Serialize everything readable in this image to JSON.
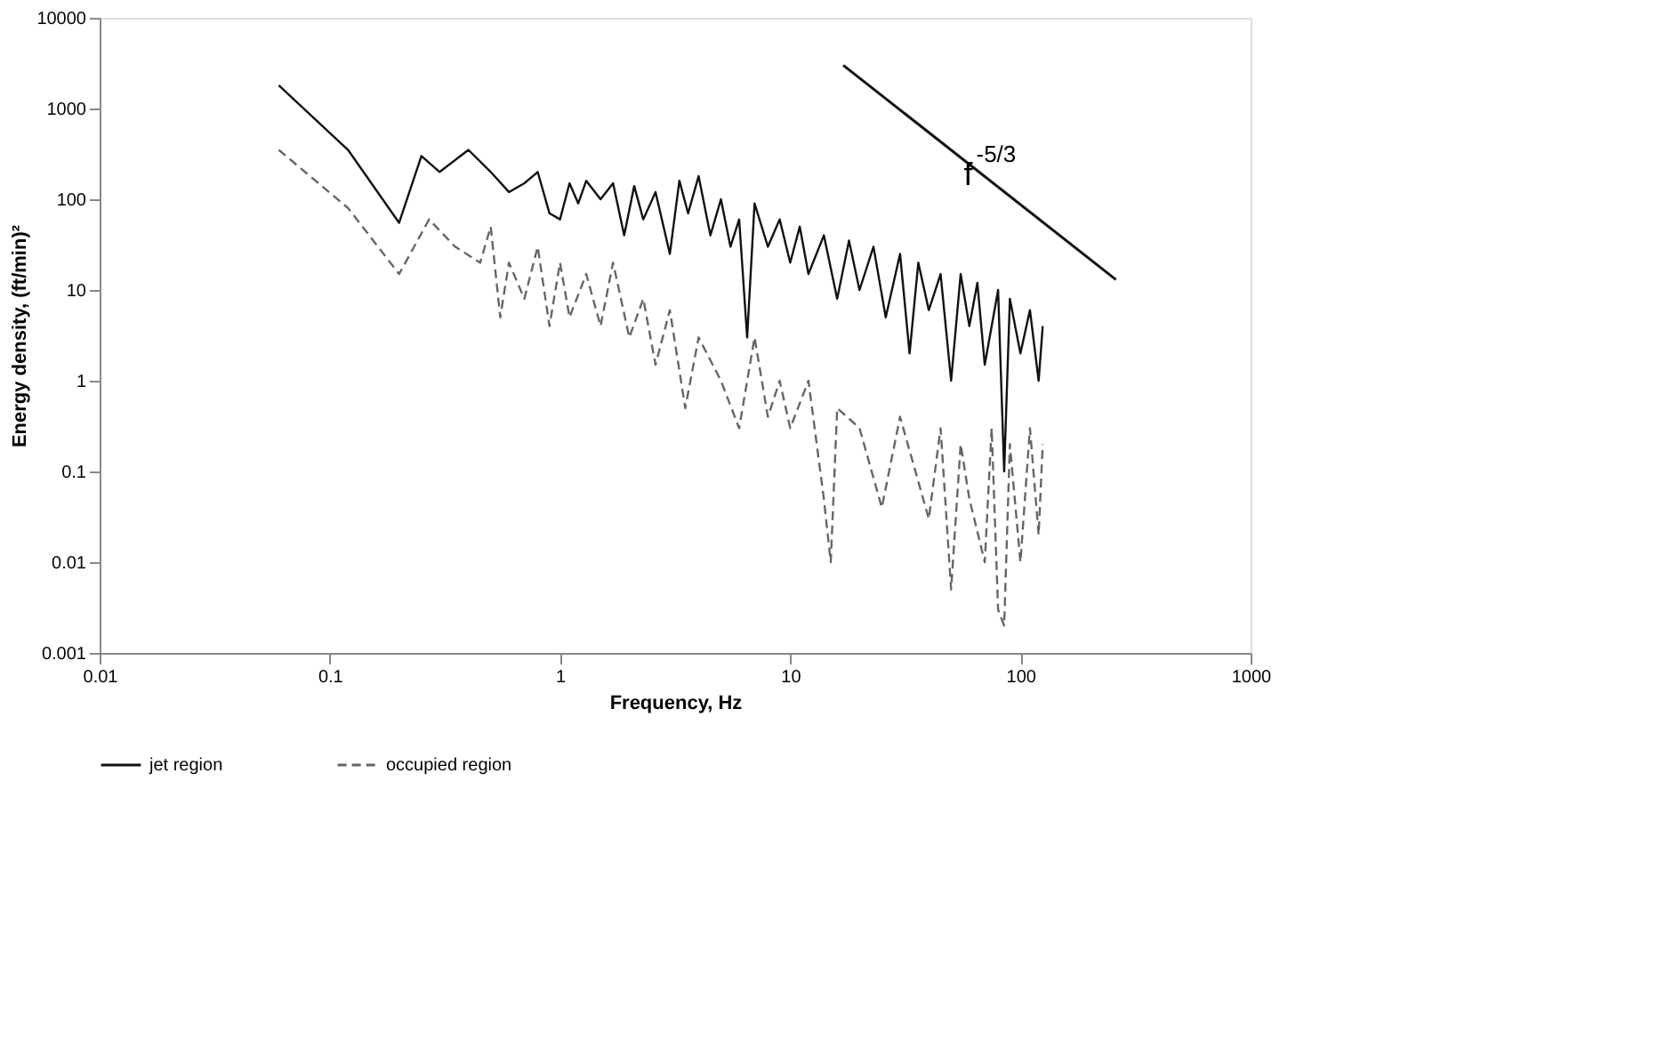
{
  "chart_data": {
    "type": "line",
    "xlabel": "Frequency, Hz",
    "ylabel": "Energy density, (ft/min)²",
    "log": "xy",
    "grid": false,
    "legend": "bottom",
    "marker": "none",
    "xlim": [
      0.01,
      1000
    ],
    "xticks": [
      0.01,
      0.1,
      1,
      10,
      100,
      1000
    ],
    "ylim": [
      0.001,
      10000
    ],
    "yticks": [
      0.001,
      0.01,
      0.1,
      1,
      10,
      100,
      1000,
      10000
    ],
    "series": [
      {
        "name": "jet region",
        "color": "#111111",
        "line_style": "solid",
        "x": [
          0.06,
          0.12,
          0.2,
          0.25,
          0.3,
          0.4,
          0.5,
          0.6,
          0.7,
          0.8,
          0.9,
          1.0,
          1.1,
          1.2,
          1.3,
          1.5,
          1.7,
          1.9,
          2.1,
          2.3,
          2.6,
          3.0,
          3.3,
          3.6,
          4.0,
          4.5,
          5.0,
          5.5,
          6.0,
          6.5,
          7,
          8,
          9,
          10,
          11,
          12,
          14,
          16,
          18,
          20,
          23,
          26,
          30,
          33,
          36,
          40,
          45,
          50,
          55,
          60,
          65,
          70,
          80,
          85,
          90,
          100,
          110,
          120,
          125
        ],
        "values": [
          1800,
          350,
          55,
          300,
          200,
          350,
          200,
          120,
          150,
          200,
          70,
          60,
          150,
          90,
          160,
          100,
          150,
          40,
          140,
          60,
          120,
          25,
          160,
          70,
          180,
          40,
          100,
          30,
          60,
          3,
          90,
          30,
          60,
          20,
          50,
          15,
          40,
          8,
          35,
          10,
          30,
          5,
          25,
          2,
          20,
          6,
          15,
          1,
          15,
          4,
          12,
          1.5,
          10,
          0.1,
          8,
          2,
          6,
          1,
          4
        ]
      },
      {
        "name": "occupied region",
        "color": "#666666",
        "line_style": "dashed",
        "x": [
          0.06,
          0.12,
          0.2,
          0.27,
          0.35,
          0.45,
          0.5,
          0.55,
          0.6,
          0.7,
          0.8,
          0.9,
          1.0,
          1.1,
          1.3,
          1.5,
          1.7,
          2,
          2.3,
          2.6,
          3,
          3.5,
          4,
          5,
          6,
          7,
          8,
          9,
          10,
          12,
          14,
          15,
          16,
          20,
          25,
          30,
          35,
          40,
          45,
          50,
          55,
          60,
          70,
          75,
          80,
          85,
          90,
          100,
          110,
          120,
          125
        ],
        "values": [
          350,
          80,
          15,
          60,
          30,
          20,
          50,
          5,
          20,
          8,
          30,
          4,
          20,
          5,
          15,
          4,
          20,
          3,
          8,
          1.5,
          6,
          0.5,
          3,
          1,
          0.3,
          3,
          0.4,
          1,
          0.3,
          1,
          0.05,
          0.01,
          0.5,
          0.3,
          0.04,
          0.4,
          0.1,
          0.03,
          0.3,
          0.005,
          0.2,
          0.05,
          0.01,
          0.3,
          0.003,
          0.002,
          0.2,
          0.01,
          0.3,
          0.02,
          0.2
        ]
      },
      {
        "type": "line",
        "color": "#111111",
        "line_style": "solid",
        "x": [
          17,
          260
        ],
        "values": [
          3000,
          13
        ]
      }
    ],
    "annotations": [
      {
        "text": "f$^{-5/3}$",
        "x": 62,
        "y": 180
      }
    ]
  }
}
